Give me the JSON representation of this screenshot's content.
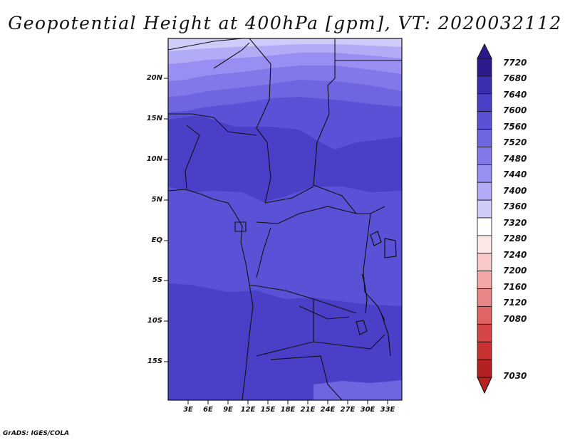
{
  "title": "Geopotential Height at 400hPa [gpm], VT: 2020032112",
  "credit": "GrADS: IGES/COLA",
  "map": {
    "lat_labels": [
      "20N",
      "15N",
      "10N",
      "5N",
      "EQ",
      "5S",
      "10S",
      "15S"
    ],
    "lon_labels": [
      "3E",
      "6E",
      "9E",
      "12E",
      "15E",
      "18E",
      "21E",
      "24E",
      "27E",
      "30E",
      "33E"
    ]
  },
  "colorbar": {
    "labels": [
      "7720",
      "7680",
      "7640",
      "7600",
      "7560",
      "7520",
      "7480",
      "7440",
      "7400",
      "7360",
      "7320",
      "7280",
      "7240",
      "7200",
      "7160",
      "7120",
      "7080",
      "7030"
    ],
    "colors": [
      "#2a1a8c",
      "#3a2fb0",
      "#4a40c8",
      "#5a52d6",
      "#6d66e0",
      "#8179ea",
      "#978ff2",
      "#b2acf6",
      "#d0ccfa",
      "#ffffff",
      "#fde6e6",
      "#f9c8c8",
      "#f2a6a6",
      "#e98585",
      "#e06464",
      "#d64646",
      "#c93030",
      "#b52020"
    ]
  }
}
